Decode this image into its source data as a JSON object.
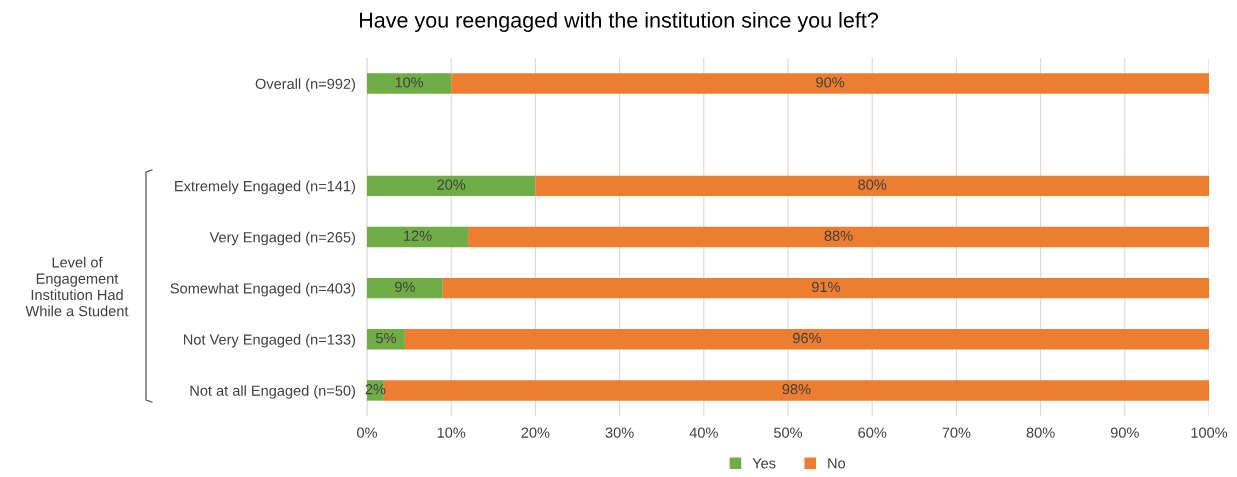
{
  "chart_data": {
    "type": "bar",
    "orientation": "horizontal",
    "stacked": true,
    "title": "Have you reengaged with the institution since you left?",
    "categories": [
      "Overall (n=992)",
      null,
      "Extremely Engaged (n=141)",
      "Very Engaged (n=265)",
      "Somewhat Engaged (n=403)",
      "Not Very Engaged (n=133)",
      "Not at all Engaged (n=50)"
    ],
    "series": [
      {
        "name": "Yes",
        "color": "#70ad47",
        "values": [
          10,
          null,
          20,
          12,
          9,
          4.5,
          2
        ],
        "value_labels": [
          "10%",
          null,
          "20%",
          "12%",
          "9%",
          "5%",
          "2%"
        ]
      },
      {
        "name": "No",
        "color": "#ed7d31",
        "values": [
          90,
          null,
          80,
          88,
          91,
          95.5,
          98
        ],
        "value_labels": [
          "90%",
          null,
          "80%",
          "88%",
          "91%",
          "96%",
          "98%"
        ]
      }
    ],
    "xlim": [
      0,
      100
    ],
    "xticks": [
      {
        "value": 0,
        "label": "0%"
      },
      {
        "value": 10,
        "label": "10%"
      },
      {
        "value": 20,
        "label": "20%"
      },
      {
        "value": 30,
        "label": "30%"
      },
      {
        "value": 40,
        "label": "40%"
      },
      {
        "value": 50,
        "label": "50%"
      },
      {
        "value": 60,
        "label": "60%"
      },
      {
        "value": 70,
        "label": "70%"
      },
      {
        "value": 80,
        "label": "80%"
      },
      {
        "value": 90,
        "label": "90%"
      },
      {
        "value": 100,
        "label": "100%"
      }
    ],
    "grid": "x",
    "legend": "bottom",
    "annotations": [
      "Level of\nEngagement\nInstitution Had\nWhile a Student"
    ]
  }
}
